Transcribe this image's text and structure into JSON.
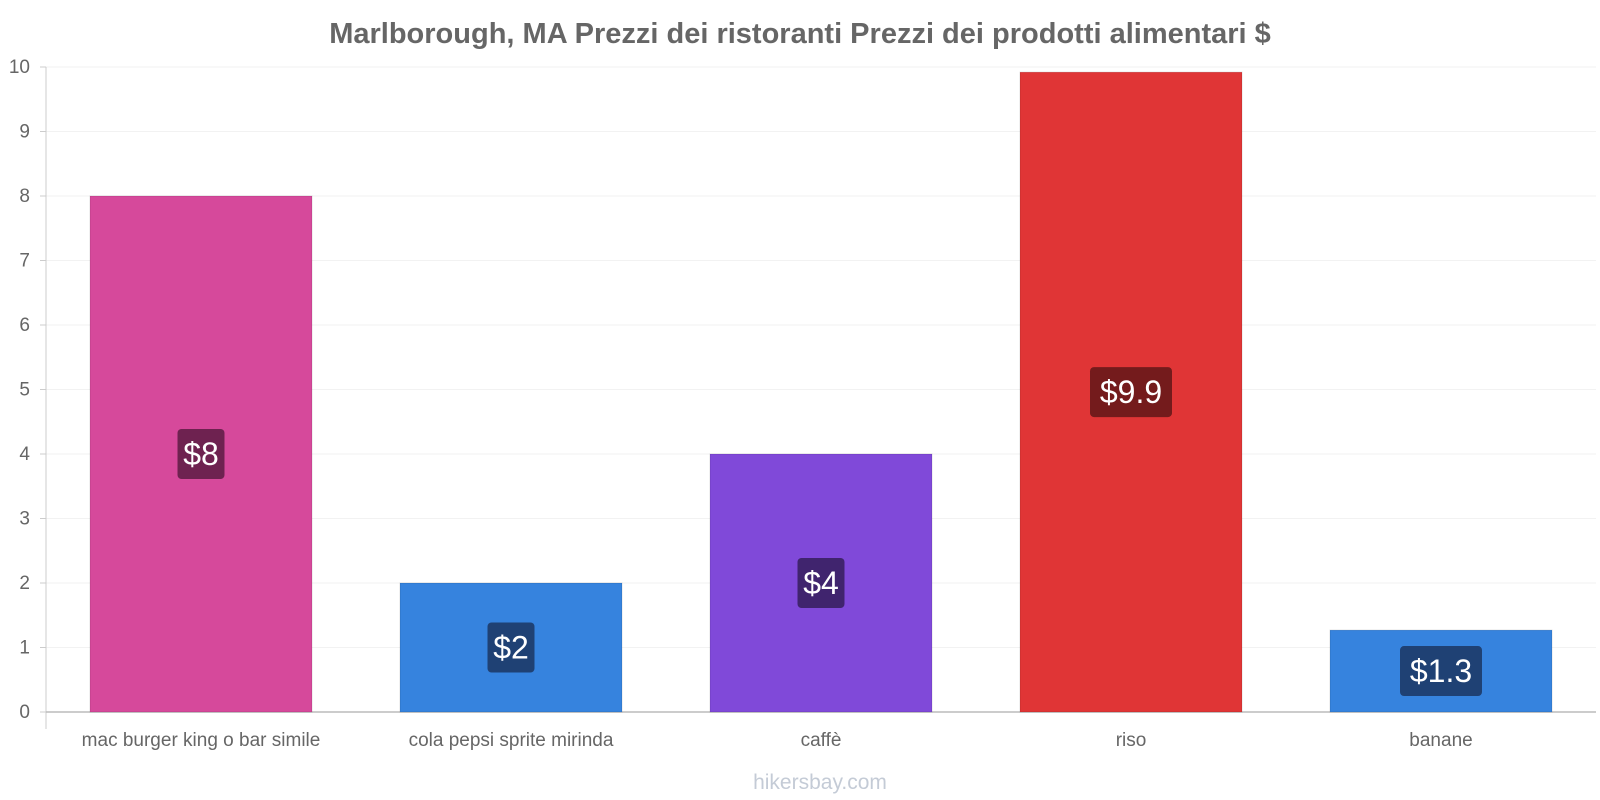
{
  "chart_data": {
    "type": "bar",
    "title": "Marlborough, MA Prezzi dei ristoranti Prezzi dei prodotti alimentari $",
    "categories": [
      "mac burger king o bar simile",
      "cola pepsi sprite mirinda",
      "caffè",
      "riso",
      "banane"
    ],
    "values": [
      8,
      2,
      4,
      9.9,
      1.3
    ],
    "bar_values": [
      8,
      2,
      4,
      9.92,
      1.27
    ],
    "value_labels": [
      "$8",
      "$2",
      "$4",
      "$9.9",
      "$1.3"
    ],
    "colors": [
      "#d6499b",
      "#3683de",
      "#8049d9",
      "#e03536",
      "#3683de"
    ],
    "label_bg_colors": [
      "#6e2250",
      "#1f4174",
      "#40246e",
      "#741b1c",
      "#1f4174"
    ],
    "ylim": [
      0,
      10
    ],
    "yticks": [
      "0",
      "1",
      "2",
      "3",
      "4",
      "5",
      "6",
      "7",
      "8",
      "9",
      "10"
    ],
    "grid": true,
    "xlabel": "",
    "ylabel": ""
  },
  "watermark": "hikersbay.com"
}
